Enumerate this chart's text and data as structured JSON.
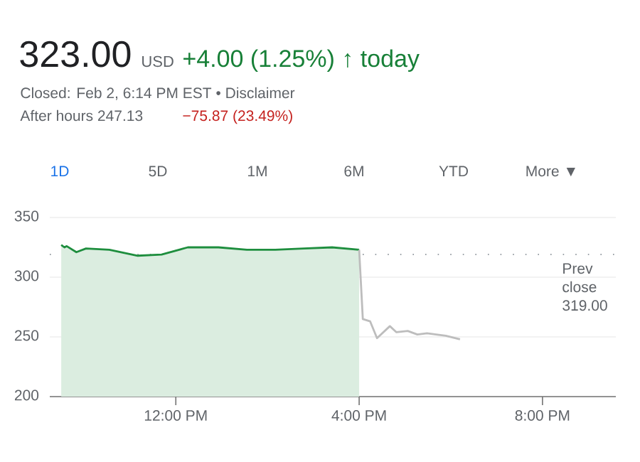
{
  "chart_data": {
    "type": "line",
    "title": "323.00",
    "annotations": [
      "USD",
      "+4.00 (1.25%) ↑ today",
      "Closed: Feb 2, 6:14 PM EST • Disclaimer",
      "After hours 247.13",
      "−75.87 (23.49%)",
      "1D",
      "5D",
      "1M",
      "6M",
      "YTD",
      "More ▼"
    ],
    "series": [
      {
        "type": "area",
        "color": "#1e8e3e",
        "x": [
          9.5,
          9.57,
          9.62,
          9.83,
          10.04,
          10.55,
          11.17,
          11.69,
          12.26,
          12.93,
          13.55,
          14.17,
          14.79,
          15.41,
          16.0
        ],
        "values": [
          327,
          325,
          326,
          321,
          324,
          323,
          318,
          319,
          325,
          325,
          323,
          323,
          324,
          325,
          323
        ]
      },
      {
        "color": "#bdbdbd",
        "x": [
          16.0,
          16.08,
          16.24,
          16.39,
          16.67,
          16.81,
          17.06,
          17.27,
          17.48,
          17.68,
          17.89,
          18.2
        ],
        "values": [
          323,
          265,
          263,
          249,
          259,
          254,
          255,
          252,
          253,
          252,
          251,
          248
        ]
      }
    ],
    "xlim": [
      9.25,
      21.6
    ],
    "xticks": [
      {
        "value": 12,
        "label": "12:00 PM"
      },
      {
        "value": 16,
        "label": "4:00 PM"
      },
      {
        "value": 20,
        "label": "8:00 PM"
      }
    ],
    "ylim": [
      200,
      350
    ],
    "yticks": [
      200,
      250,
      300,
      350
    ],
    "ref_lines": [
      {
        "axis": "y",
        "value": 319,
        "label": "Prev close 319.00",
        "line_style": "dotted",
        "color": "#9aa0a6"
      }
    ],
    "grid": "y"
  }
}
